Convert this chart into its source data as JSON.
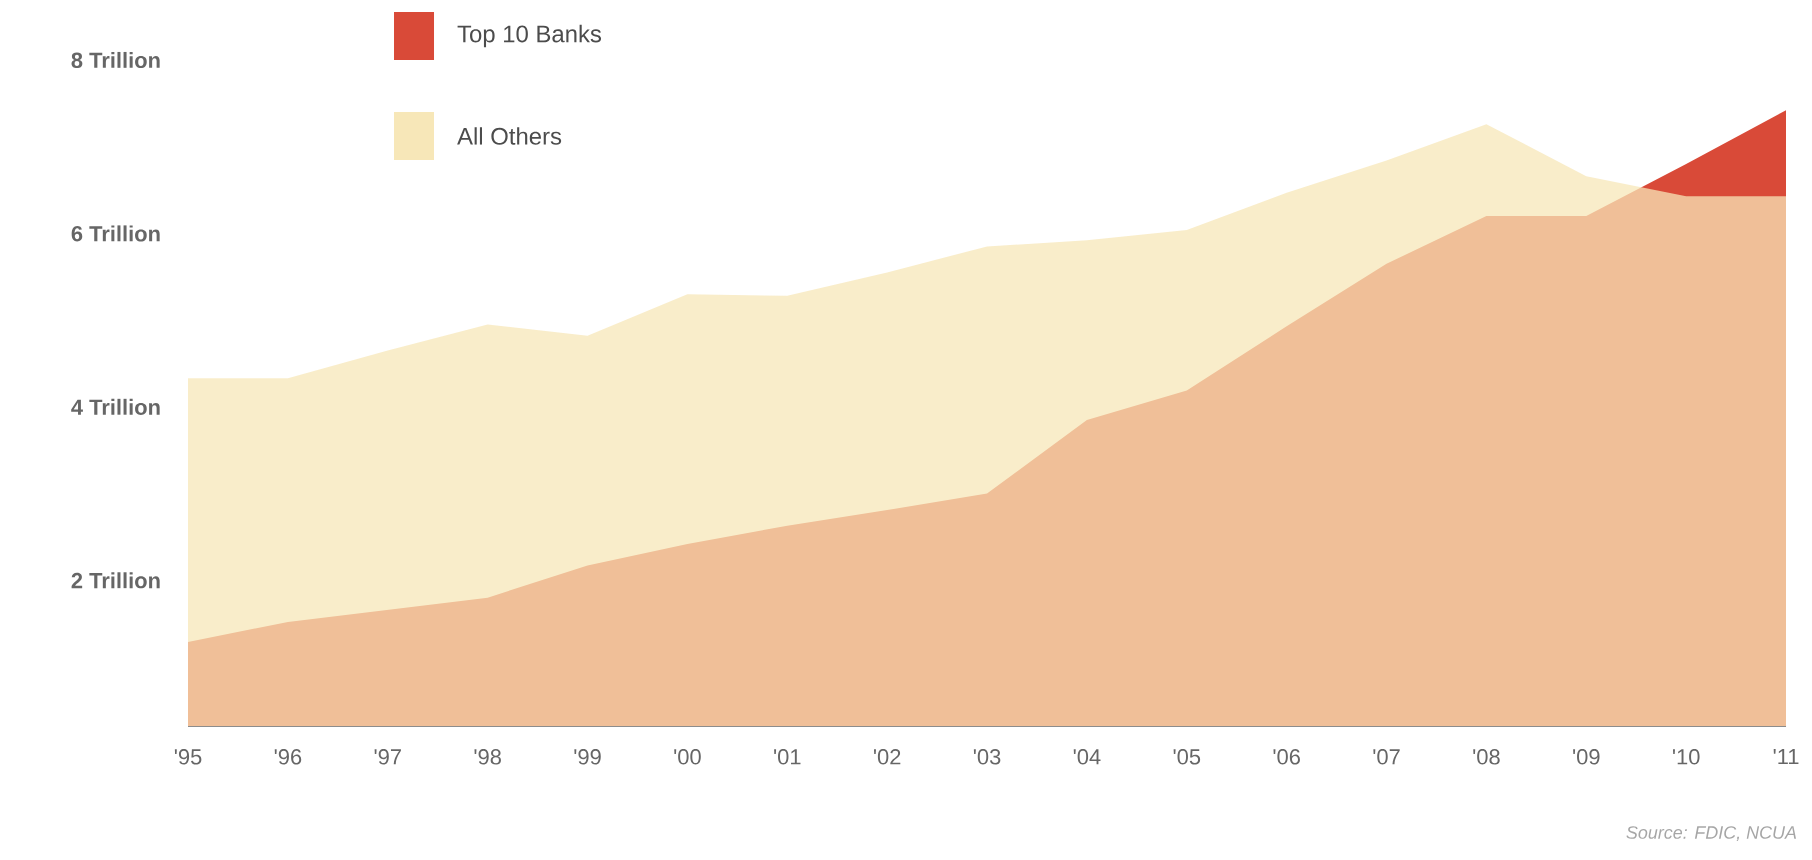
{
  "chart_data": {
    "type": "area",
    "categories": [
      "'95",
      "'96",
      "'97",
      "'98",
      "'99",
      "'00",
      "'01",
      "'02",
      "'03",
      "'04",
      "'05",
      "'06",
      "'07",
      "'08",
      "'09",
      "'10",
      "'11"
    ],
    "series": [
      {
        "name": "Top 10 Banks",
        "color": "#d94a38",
        "values": [
          1.29,
          1.52,
          1.66,
          1.8,
          2.17,
          2.42,
          2.63,
          2.81,
          3.0,
          3.85,
          4.19,
          4.93,
          5.65,
          6.2,
          6.2,
          6.8,
          7.42
        ]
      },
      {
        "name": "All Others",
        "color": "#f7e7b8",
        "values": [
          4.33,
          4.33,
          4.65,
          4.95,
          4.82,
          5.3,
          5.28,
          5.55,
          5.85,
          5.92,
          6.04,
          6.47,
          6.84,
          7.26,
          6.66,
          6.43,
          6.43
        ]
      }
    ],
    "ylim": [
      0.32,
      8
    ],
    "yticks": [
      {
        "value": 2,
        "label": "2 Trillion"
      },
      {
        "value": 4,
        "label": "4 Trillion"
      },
      {
        "value": 6,
        "label": "6 Trillion"
      },
      {
        "value": 8,
        "label": "8 Trillion"
      }
    ],
    "legend": "top left",
    "grid": false,
    "annotations": [
      "Source: FDIC, NCUA"
    ]
  }
}
